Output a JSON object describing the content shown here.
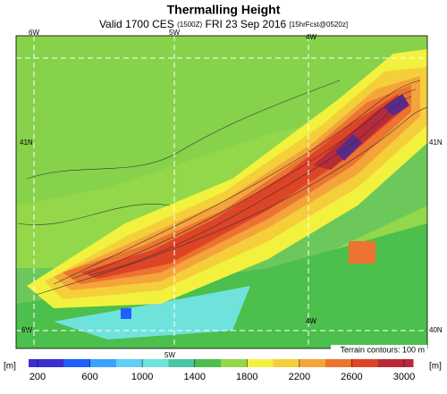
{
  "header": {
    "title": "Thermalling Height",
    "subtitle_parts": [
      "Valid 1700 CES",
      "(1500Z)",
      "FRI 23 Sep 2016",
      "[15hrFcst@0520z]"
    ]
  },
  "map": {
    "top_labels": [
      "6W",
      "5W",
      "4W"
    ],
    "left_label": "41N",
    "right_labels": [
      "41N",
      "40N"
    ],
    "inner_labels": [
      "4W"
    ],
    "bottom_labels": [
      "6W",
      "5W"
    ],
    "contour_note": "Terrain contours: 100 m"
  },
  "colorbar": {
    "unit": "[m]",
    "ticks": [
      200,
      600,
      1000,
      1400,
      1800,
      2200,
      2600,
      3000
    ],
    "colors": [
      "#3b2fd2",
      "#2160ff",
      "#3aa2ff",
      "#62cdf5",
      "#70e2dc",
      "#4cc6a2",
      "#4cbf4c",
      "#93d84a",
      "#f2f23e",
      "#f5cf3a",
      "#f4a43a",
      "#ec7330",
      "#de4426",
      "#b82a3a"
    ]
  }
}
